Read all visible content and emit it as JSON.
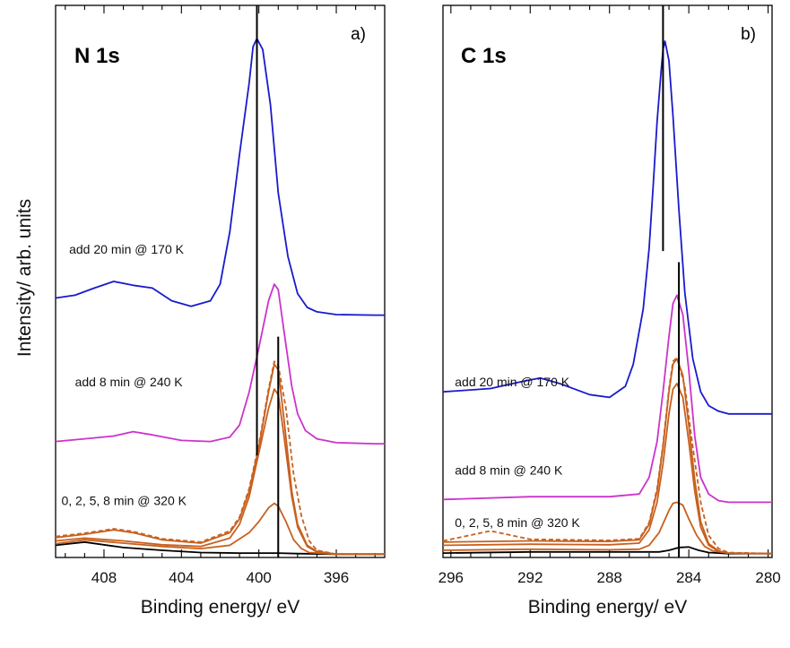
{
  "figure": {
    "ylabel": "Intensity/ arb. units"
  },
  "chart_data": [
    {
      "type": "line",
      "title": "N 1s",
      "panel_label": "a)",
      "xlabel": "Binding energy/ eV",
      "ylabel": "Intensity/ arb. units",
      "xlim": [
        410.5,
        393.5
      ],
      "x_reversed": true,
      "ylim": [
        0,
        100
      ],
      "y_ticks_labeled": false,
      "xticks": [
        408,
        404,
        400,
        396
      ],
      "grid": false,
      "colors": {
        "blue": "#1a1acc",
        "magenta": "#cc33cc",
        "orange": "#c8601e",
        "black": "#000000"
      },
      "annotations": [
        {
          "text": "add 20 min @ 170 K",
          "x": 409.8,
          "y": 55
        },
        {
          "text": "add 8 min @ 240 K",
          "x": 409.5,
          "y": 31
        },
        {
          "text": "0, 2, 5, 8 min @ 320 K",
          "x": 410.2,
          "y": 9.5
        }
      ],
      "reference_lines": [
        {
          "x": 400.1,
          "y_from": 18.5,
          "y_to": 100
        },
        {
          "x": 399.0,
          "y_from": 0,
          "y_to": 40
        }
      ],
      "series": [
        {
          "color": "black",
          "style": "solid",
          "x": [
            410.5,
            409,
            407,
            405,
            403,
            401,
            400,
            399,
            398,
            396,
            394,
            393.5
          ],
          "y": [
            2.2,
            2.8,
            1.8,
            1.3,
            0.9,
            0.8,
            0.8,
            0.8,
            0.7,
            0.6,
            0.6,
            0.6
          ]
        },
        {
          "color": "orange",
          "style": "solid",
          "x": [
            410.5,
            409,
            407,
            405,
            403,
            401.5,
            400.5,
            400,
            399.5,
            399.2,
            399,
            398.6,
            398.2,
            397.8,
            397.4,
            396,
            394,
            393.5
          ],
          "y": [
            2.5,
            3.2,
            2.6,
            2.0,
            1.6,
            2.2,
            4.5,
            6.5,
            9.0,
            9.8,
            9.3,
            6.5,
            3.2,
            1.6,
            0.9,
            0.6,
            0.6,
            0.6
          ]
        },
        {
          "color": "orange",
          "style": "solid",
          "x": [
            410.5,
            409,
            407,
            405,
            403,
            401.5,
            401,
            400.5,
            400,
            399.5,
            399.2,
            399,
            398.7,
            398.3,
            398,
            397.5,
            397,
            396,
            394,
            393.5
          ],
          "y": [
            3.0,
            3.5,
            3.0,
            2.3,
            2.0,
            3.5,
            6.0,
            11.0,
            19.0,
            27.0,
            30.5,
            29.5,
            22.0,
            11.0,
            5.5,
            2.0,
            1.0,
            0.6,
            0.6,
            0.6
          ]
        },
        {
          "color": "orange",
          "style": "solid",
          "x": [
            410.5,
            409,
            407.5,
            406.5,
            405,
            403,
            401.5,
            401,
            400.5,
            400,
            399.5,
            399.2,
            399,
            398.7,
            398.3,
            398,
            397.5,
            397,
            396,
            394,
            393.5
          ],
          "y": [
            3.6,
            4.2,
            5.0,
            4.5,
            3.2,
            2.6,
            4.5,
            7.0,
            12.0,
            20.0,
            30.0,
            35.0,
            34.0,
            25.0,
            12.0,
            6.0,
            2.2,
            1.1,
            0.6,
            0.6,
            0.6
          ]
        },
        {
          "color": "orange",
          "style": "dashed",
          "x": [
            410.5,
            409,
            407.5,
            406.5,
            405,
            403,
            401.5,
            401,
            400.5,
            400,
            399.5,
            399.2,
            399,
            398.6,
            398.2,
            397.8,
            397.4,
            397,
            396,
            394,
            393.5
          ],
          "y": [
            3.8,
            4.4,
            5.2,
            4.7,
            3.4,
            2.8,
            4.8,
            7.3,
            12.5,
            20.5,
            30.5,
            35.5,
            34.8,
            27.0,
            15.0,
            7.5,
            3.0,
            1.3,
            0.6,
            0.6,
            0.6
          ]
        },
        {
          "color": "magenta",
          "style": "solid",
          "x": [
            410.5,
            409,
            407.5,
            406.5,
            405.5,
            404,
            402.5,
            401.5,
            401,
            400.5,
            400,
            399.5,
            399.2,
            399,
            398.7,
            398.3,
            398,
            397.6,
            397,
            396,
            394,
            393.5
          ],
          "y": [
            21.0,
            21.5,
            22.0,
            22.8,
            22.2,
            21.2,
            21.0,
            21.8,
            24.0,
            30.0,
            38.0,
            46.5,
            49.5,
            48.5,
            41.0,
            31.0,
            26.0,
            23.0,
            21.5,
            20.8,
            20.6,
            20.6
          ]
        },
        {
          "color": "blue",
          "style": "solid",
          "x": [
            410.5,
            409.5,
            408.5,
            407.5,
            406.5,
            405.5,
            404.5,
            403.5,
            402.5,
            402,
            401.5,
            401,
            400.5,
            400.3,
            400.1,
            399.8,
            399.4,
            399,
            398.5,
            398,
            397.5,
            397,
            396,
            394,
            393.5
          ],
          "y": [
            47.0,
            47.5,
            48.8,
            50.0,
            49.3,
            48.8,
            46.5,
            45.5,
            46.5,
            49.5,
            59.0,
            73.0,
            86.0,
            92.5,
            94.0,
            92.0,
            82.0,
            66.0,
            54.5,
            47.8,
            45.3,
            44.5,
            44.0,
            43.9,
            43.9
          ]
        }
      ]
    },
    {
      "type": "line",
      "title": "C 1s",
      "panel_label": "b)",
      "xlabel": "Binding energy/ eV",
      "ylabel": "",
      "xlim": [
        296.4,
        279.8
      ],
      "x_reversed": true,
      "ylim": [
        0,
        100
      ],
      "y_ticks_labeled": false,
      "xticks": [
        296,
        292,
        288,
        284,
        280
      ],
      "grid": false,
      "colors": {
        "blue": "#1a1acc",
        "magenta": "#cc33cc",
        "orange": "#c8601e",
        "black": "#000000"
      },
      "annotations": [
        {
          "text": "add 20 min @ 170 K",
          "x": 295.8,
          "y": 31
        },
        {
          "text": "add 8 min @ 240 K",
          "x": 295.8,
          "y": 15
        },
        {
          "text": "0, 2, 5, 8 min @ 320 K",
          "x": 295.8,
          "y": 5.5
        }
      ],
      "reference_lines": [
        {
          "x": 285.3,
          "y_from": 55.5,
          "y_to": 100
        },
        {
          "x": 284.5,
          "y_from": 0,
          "y_to": 53.5
        }
      ],
      "series": [
        {
          "color": "black",
          "style": "solid",
          "x": [
            296.4,
            292,
            288,
            286,
            285.5,
            285,
            284.5,
            284,
            283.5,
            283,
            282,
            279.8
          ],
          "y": [
            0.8,
            1.0,
            1.0,
            1.0,
            1.0,
            1.3,
            1.8,
            1.9,
            1.3,
            0.9,
            0.7,
            0.7
          ]
        },
        {
          "color": "orange",
          "style": "solid",
          "x": [
            296.4,
            292,
            288,
            286.5,
            286,
            285.5,
            285,
            284.8,
            284.6,
            284.3,
            284,
            283.6,
            283.2,
            282.8,
            282,
            279.8
          ],
          "y": [
            1.3,
            1.5,
            1.4,
            1.5,
            2.2,
            4.5,
            8.5,
            9.8,
            10.0,
            9.5,
            7.0,
            4.0,
            2.0,
            1.2,
            0.8,
            0.7
          ]
        },
        {
          "color": "orange",
          "style": "solid",
          "x": [
            296.4,
            292,
            288,
            286.5,
            286,
            285.6,
            285.3,
            285,
            284.8,
            284.6,
            284.3,
            284,
            283.7,
            283.4,
            283,
            282.5,
            282,
            279.8
          ],
          "y": [
            2.2,
            2.4,
            2.3,
            2.6,
            5.0,
            10.0,
            17.0,
            26.0,
            30.5,
            31.5,
            29.0,
            21.0,
            12.0,
            5.5,
            2.2,
            1.1,
            0.8,
            0.7
          ]
        },
        {
          "color": "orange",
          "style": "solid",
          "x": [
            296.4,
            292,
            288,
            286.5,
            286,
            285.6,
            285.3,
            285,
            284.8,
            284.6,
            284.3,
            284,
            283.7,
            283.4,
            283,
            282.5,
            282,
            279.8
          ],
          "y": [
            2.8,
            3.0,
            2.9,
            3.2,
            6.0,
            12.0,
            20.0,
            30.0,
            35.0,
            36.0,
            33.0,
            24.0,
            14.0,
            6.5,
            2.5,
            1.2,
            0.8,
            0.7
          ]
        },
        {
          "color": "orange",
          "style": "dashed",
          "x": [
            296.4,
            294,
            292,
            288,
            286.5,
            286,
            285.6,
            285.3,
            285,
            284.8,
            284.6,
            284.2,
            283.8,
            283.4,
            283,
            282.5,
            282,
            279.8
          ],
          "y": [
            3.0,
            4.8,
            3.3,
            3.1,
            3.4,
            6.3,
            12.5,
            20.5,
            30.5,
            35.5,
            36.2,
            31.0,
            20.0,
            10.0,
            4.0,
            1.6,
            0.9,
            0.7
          ]
        },
        {
          "color": "magenta",
          "style": "solid",
          "x": [
            296.4,
            292,
            288,
            286.5,
            286,
            285.6,
            285.3,
            285,
            284.8,
            284.6,
            284.3,
            284,
            283.7,
            283.4,
            283,
            282.5,
            282,
            279.8
          ],
          "y": [
            10.5,
            11.0,
            11.0,
            11.5,
            14.5,
            21.0,
            30.0,
            40.0,
            46.0,
            47.5,
            44.0,
            34.0,
            22.0,
            14.5,
            11.5,
            10.3,
            10.0,
            10.0
          ]
        },
        {
          "color": "blue",
          "style": "solid",
          "x": [
            296.4,
            294,
            292.5,
            291.5,
            290.5,
            289,
            288,
            287.2,
            286.8,
            286.3,
            286,
            285.8,
            285.6,
            285.4,
            285.3,
            285.2,
            285,
            284.8,
            284.5,
            284.2,
            283.8,
            283.4,
            283,
            282.5,
            282,
            279.8
          ],
          "y": [
            30.0,
            30.6,
            31.8,
            32.5,
            31.5,
            29.5,
            29.0,
            31.0,
            35.0,
            45.0,
            56.0,
            67.0,
            79.0,
            88.0,
            92.0,
            93.5,
            90.0,
            80.0,
            63.0,
            48.0,
            36.0,
            30.0,
            27.5,
            26.5,
            26.0,
            26.0
          ]
        }
      ]
    }
  ]
}
